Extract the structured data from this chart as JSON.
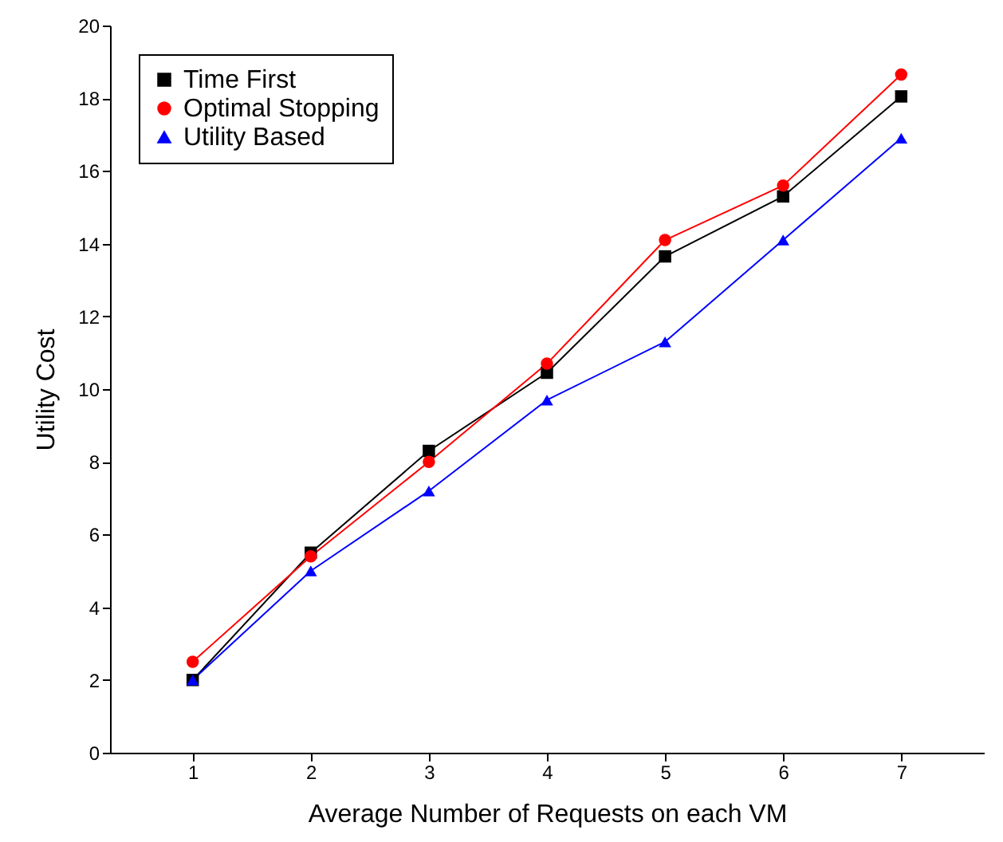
{
  "chart_data": {
    "type": "line",
    "xlabel": "Average Number of Requests on each VM",
    "ylabel": "Utility Cost",
    "x": [
      1,
      2,
      3,
      4,
      5,
      6,
      7
    ],
    "series": [
      {
        "name": "Time First",
        "color": "#000000",
        "marker": "square",
        "values": [
          2.0,
          5.5,
          8.3,
          10.45,
          13.65,
          15.3,
          18.05
        ]
      },
      {
        "name": "Optimal Stopping",
        "color": "#ff0000",
        "marker": "circle",
        "values": [
          2.5,
          5.4,
          8.0,
          10.7,
          14.1,
          15.6,
          18.65
        ]
      },
      {
        "name": "Utility Based",
        "color": "#0000ff",
        "marker": "triangle",
        "values": [
          2.0,
          5.0,
          7.2,
          9.7,
          11.3,
          14.1,
          16.9
        ]
      }
    ],
    "xlim": [
      0.3,
      7.7
    ],
    "xticks": [
      1,
      2,
      3,
      4,
      5,
      6,
      7
    ],
    "ylim": [
      0,
      20
    ],
    "yticks": [
      0,
      2,
      4,
      6,
      8,
      10,
      12,
      14,
      16,
      18,
      20
    ],
    "grid": false,
    "legend": "top left",
    "line_style": "solid"
  }
}
